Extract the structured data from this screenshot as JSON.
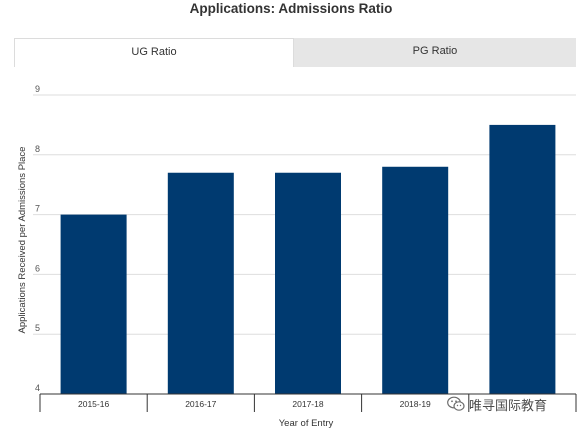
{
  "title": "Applications: Admissions Ratio",
  "tabs": [
    {
      "label": "UG Ratio",
      "active": true
    },
    {
      "label": "PG Ratio",
      "active": false
    }
  ],
  "watermark": {
    "text": "唯寻国际教育",
    "icon": "wechat-icon"
  },
  "colors": {
    "bar": "#003a70",
    "tab_active": "#ffffff",
    "tab_inactive": "#e6e6e6"
  },
  "chart_data": {
    "type": "bar",
    "title": "Applications: Admissions Ratio",
    "xlabel": "Year of Entry",
    "ylabel": "Applications Received per Admissions Place",
    "categories": [
      "2015-16",
      "2016-17",
      "2017-18",
      "2018-19",
      ""
    ],
    "values": [
      7.0,
      7.7,
      7.7,
      7.8,
      8.5
    ],
    "ylim": [
      4,
      9
    ],
    "yticks": [
      4,
      5,
      6,
      7,
      8,
      9
    ],
    "grid": true,
    "legend": "none"
  }
}
